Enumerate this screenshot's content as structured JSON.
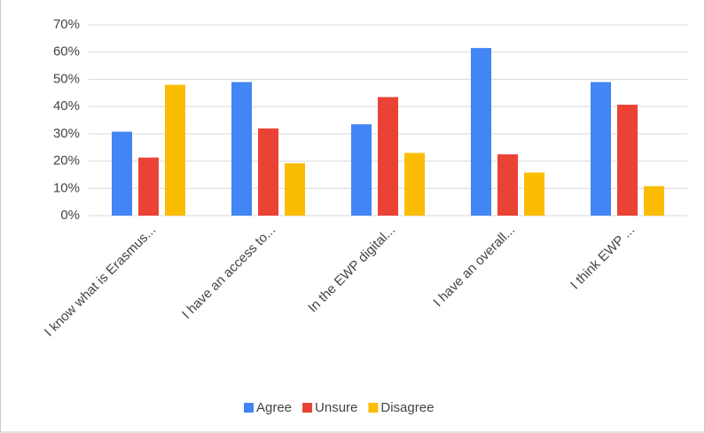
{
  "chart_data": {
    "type": "bar",
    "categories": [
      "I know what is Erasmus...",
      "I have an access to...",
      "In the EWP digital...",
      "I have an overall...",
      "I think EWP ..."
    ],
    "series": [
      {
        "name": "Agree",
        "color": "#4285f4",
        "values": [
          30.8,
          49,
          33.5,
          61.5,
          49
        ]
      },
      {
        "name": "Unsure",
        "color": "#ea4335",
        "values": [
          21.3,
          32,
          43.5,
          22.5,
          40.7
        ]
      },
      {
        "name": "Disagree",
        "color": "#fbbc04",
        "values": [
          48,
          19.2,
          23,
          15.8,
          10.8
        ]
      }
    ],
    "ylim": [
      0,
      70
    ],
    "yticks": [
      {
        "value": 0,
        "label": "0%"
      },
      {
        "value": 10,
        "label": "10%"
      },
      {
        "value": 20,
        "label": "20%"
      },
      {
        "value": 30,
        "label": "30%"
      },
      {
        "value": 40,
        "label": "40%"
      },
      {
        "value": 50,
        "label": "50%"
      },
      {
        "value": 60,
        "label": "60%"
      },
      {
        "value": 70,
        "label": "70%"
      }
    ],
    "grid": true,
    "legend": "bottom"
  }
}
